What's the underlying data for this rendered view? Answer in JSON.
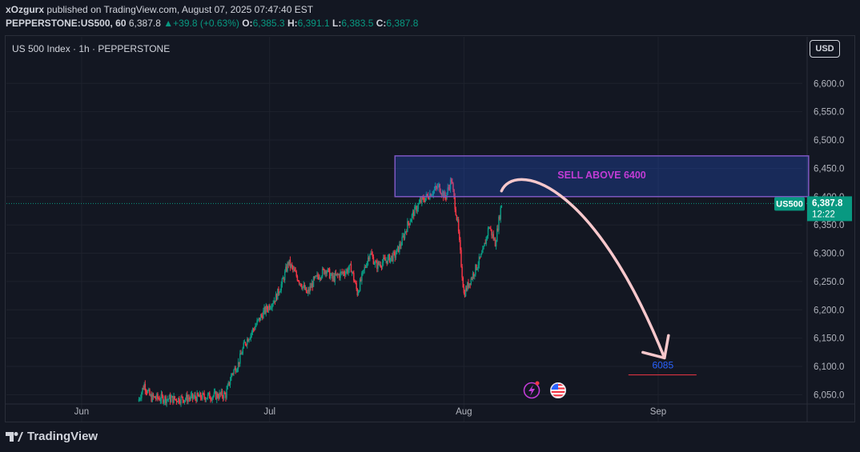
{
  "header": {
    "publisher": "xOzgurx",
    "published_text": "published on TradingView.com, August 07, 2025 07:47:40 EST",
    "symbol": "PEPPERSTONE:US500, 60",
    "last": "6,387.8",
    "change": "+39.8 (+0.63%)",
    "o_label": "O:",
    "o_value": "6,385.3",
    "h_label": "H:",
    "h_value": "6,391.1",
    "l_label": "L:",
    "l_value": "6,383.5",
    "c_label": "C:",
    "c_value": "6,387.8"
  },
  "chart_title": "US 500 Index · 1h · PEPPERSTONE",
  "currency_button": "USD",
  "brand": "TradingView",
  "colors": {
    "up": "#089981",
    "down": "#f23645",
    "zone_border": "#7e57c2",
    "zone_text": "#c23cd6",
    "arrow": "#f8c8cc",
    "target": "#2962ff"
  },
  "chart_data": {
    "type": "candlestick",
    "symbol": "US500",
    "timeframe": "1h",
    "y_ticks": [
      "6,600.0",
      "6,550.0",
      "6,500.0",
      "6,450.0",
      "6,400.0",
      "6,350.0",
      "6,300.0",
      "6,250.0",
      "6,200.0",
      "6,150.0",
      "6,100.0",
      "6,050.0"
    ],
    "y_tick_values": [
      6600,
      6550,
      6500,
      6450,
      6400,
      6350,
      6300,
      6250,
      6200,
      6150,
      6100,
      6050
    ],
    "ylim": [
      6035,
      6640
    ],
    "x_ticks": [
      "Jun",
      "Jul",
      "Aug",
      "Sep"
    ],
    "x_tick_dates": [
      "2025-06-01",
      "2025-07-01",
      "2025-08-01",
      "2025-09-01"
    ],
    "xlim": [
      "2025-05-20",
      "2025-09-24"
    ],
    "last_price": 6387.8,
    "last_price_label": "6,387.8",
    "countdown": "12:22",
    "price_tag_label": "US500",
    "zone": {
      "label": "SELL ABOVE 6400",
      "low": 6400,
      "high": 6472,
      "start": "2025-07-21",
      "end": "2025-09-25"
    },
    "target": {
      "label": "6085",
      "value": 6085
    },
    "arrow": {
      "from_date": "2025-08-07",
      "from_value": 6410,
      "to_date": "2025-09-02",
      "to_value": 6115
    },
    "price_path": [
      [
        "2025-06-10",
        6038
      ],
      [
        "2025-06-11",
        6068
      ],
      [
        "2025-06-12",
        6045
      ],
      [
        "2025-06-16",
        6042
      ],
      [
        "2025-06-24",
        6050
      ],
      [
        "2025-06-25",
        6088
      ],
      [
        "2025-06-26",
        6105
      ],
      [
        "2025-06-27",
        6140
      ],
      [
        "2025-06-30",
        6195
      ],
      [
        "2025-07-01",
        6208
      ],
      [
        "2025-07-02",
        6222
      ],
      [
        "2025-07-03",
        6248
      ],
      [
        "2025-07-04",
        6284
      ],
      [
        "2025-07-07",
        6228
      ],
      [
        "2025-07-08",
        6250
      ],
      [
        "2025-07-09",
        6262
      ],
      [
        "2025-07-10",
        6272
      ],
      [
        "2025-07-11",
        6255
      ],
      [
        "2025-07-14",
        6274
      ],
      [
        "2025-07-15",
        6230
      ],
      [
        "2025-07-16",
        6268
      ],
      [
        "2025-07-17",
        6302
      ],
      [
        "2025-07-18",
        6278
      ],
      [
        "2025-07-21",
        6296
      ],
      [
        "2025-07-22",
        6318
      ],
      [
        "2025-07-23",
        6350
      ],
      [
        "2025-07-24",
        6372
      ],
      [
        "2025-07-25",
        6390
      ],
      [
        "2025-07-28",
        6418
      ],
      [
        "2025-07-29",
        6398
      ],
      [
        "2025-07-30",
        6430
      ],
      [
        "2025-07-31",
        6352
      ],
      [
        "2025-08-01",
        6228
      ],
      [
        "2025-08-04",
        6300
      ],
      [
        "2025-08-05",
        6348
      ],
      [
        "2025-08-06",
        6318
      ],
      [
        "2025-08-07",
        6387.8
      ]
    ]
  }
}
